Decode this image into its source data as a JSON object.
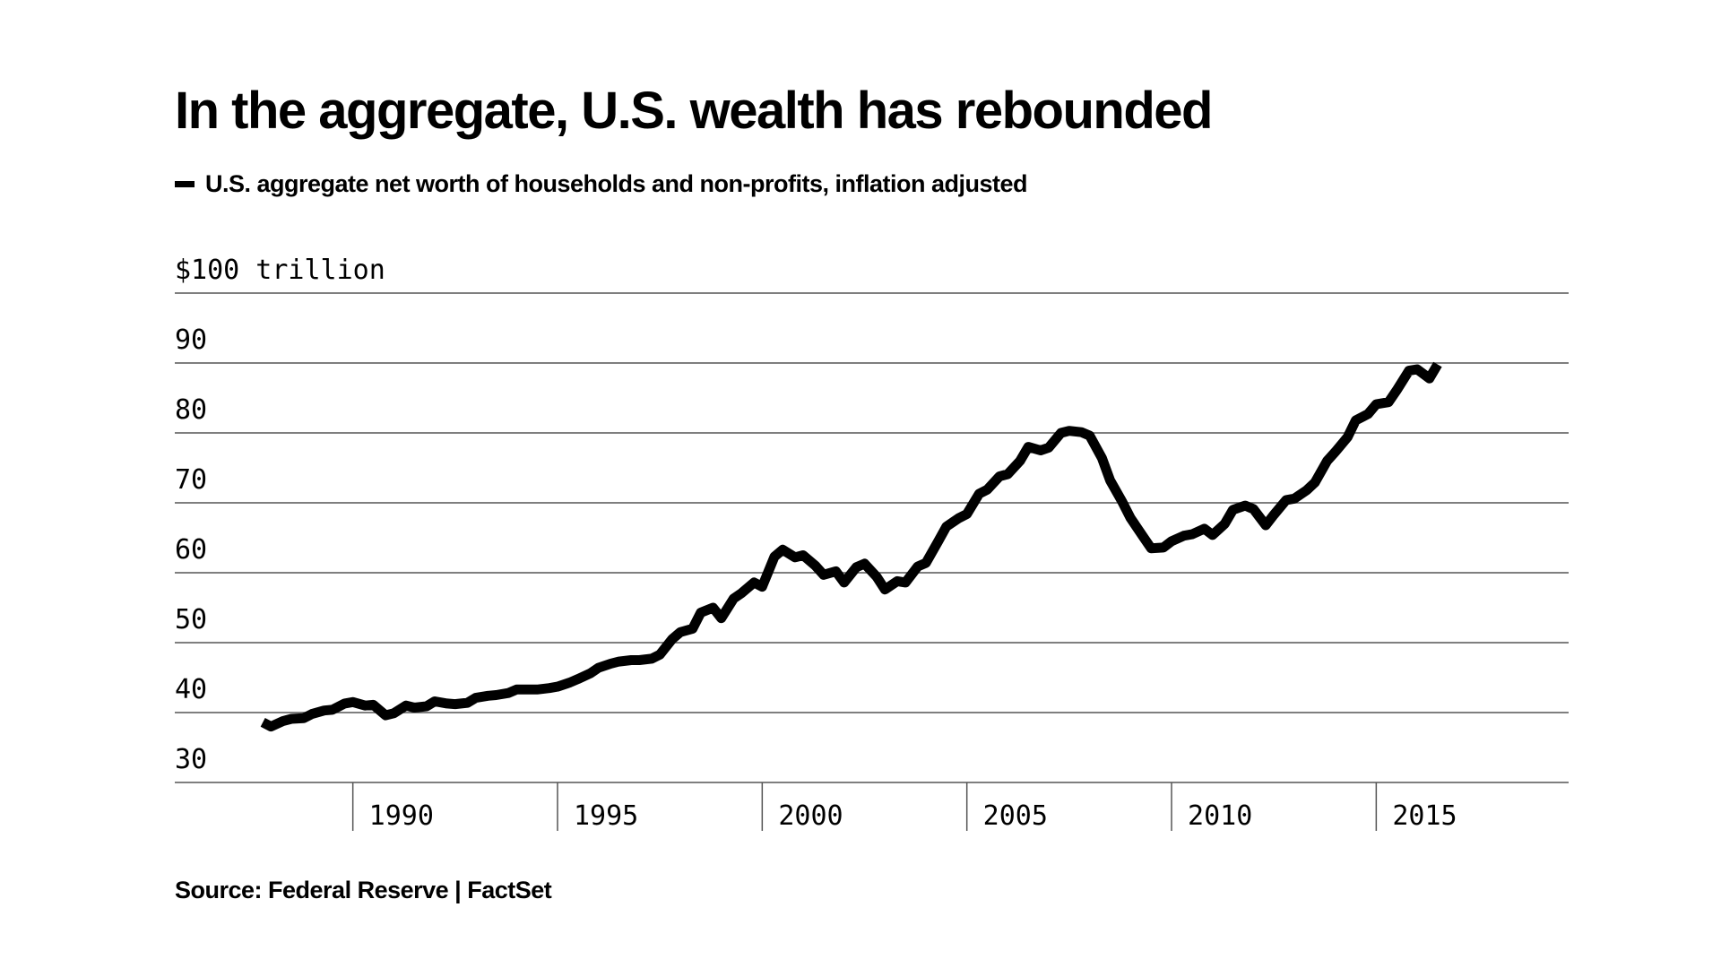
{
  "title": "In the aggregate, U.S. wealth has rebounded",
  "source": "Source: Federal Reserve | FactSet",
  "chart_data": {
    "type": "line",
    "title": "In the aggregate, U.S. wealth has rebounded",
    "unit_label": "$100 trillion",
    "y_ticks": [
      {
        "value": 100,
        "label": "$100 trillion"
      },
      {
        "value": 90,
        "label": "90"
      },
      {
        "value": 80,
        "label": "80"
      },
      {
        "value": 70,
        "label": "70"
      },
      {
        "value": 60,
        "label": "60"
      },
      {
        "value": 50,
        "label": "50"
      },
      {
        "value": 40,
        "label": "40"
      },
      {
        "value": 30,
        "label": "30"
      }
    ],
    "x_ticks": [
      {
        "value": 1990,
        "label": "1990"
      },
      {
        "value": 1995,
        "label": "1995"
      },
      {
        "value": 2000,
        "label": "2000"
      },
      {
        "value": 2005,
        "label": "2005"
      },
      {
        "value": 2010,
        "label": "2010"
      },
      {
        "value": 2015,
        "label": "2015"
      }
    ],
    "xlim": [
      1985.65,
      2019.7
    ],
    "ylim": [
      30,
      100
    ],
    "grid": true,
    "legend": "top-left",
    "series": [
      {
        "name": "U.S. aggregate net worth of households and non-profits, inflation adjusted",
        "color": "#000000",
        "x": [
          1987.8,
          1988.0,
          1988.3,
          1988.5,
          1988.8,
          1989.0,
          1989.3,
          1989.5,
          1989.8,
          1990.0,
          1990.3,
          1990.5,
          1990.8,
          1991.0,
          1991.3,
          1991.5,
          1991.8,
          1992.0,
          1992.3,
          1992.5,
          1992.8,
          1993.0,
          1993.3,
          1993.5,
          1993.8,
          1994.0,
          1994.3,
          1994.5,
          1994.8,
          1995.0,
          1995.3,
          1995.5,
          1995.8,
          1996.0,
          1996.3,
          1996.5,
          1996.8,
          1997.0,
          1997.3,
          1997.5,
          1997.8,
          1998.0,
          1998.3,
          1998.5,
          1998.8,
          1999.0,
          1999.3,
          1999.5,
          1999.8,
          2000.0,
          2000.3,
          2000.5,
          2000.8,
          2001.0,
          2001.3,
          2001.5,
          2001.8,
          2002.0,
          2002.3,
          2002.5,
          2002.8,
          2003.0,
          2003.3,
          2003.5,
          2003.8,
          2004.0,
          2004.3,
          2004.5,
          2004.8,
          2005.0,
          2005.3,
          2005.5,
          2005.8,
          2006.0,
          2006.3,
          2006.5,
          2006.8,
          2007.0,
          2007.3,
          2007.5,
          2007.8,
          2008.0,
          2008.3,
          2008.5,
          2008.8,
          2009.0,
          2009.3,
          2009.5,
          2009.8,
          2010.0,
          2010.3,
          2010.5,
          2010.8,
          2011.0,
          2011.3,
          2011.5,
          2011.8,
          2012.0,
          2012.3,
          2012.5,
          2012.8,
          2013.0,
          2013.3,
          2013.5,
          2013.8,
          2014.0,
          2014.3,
          2014.5,
          2014.8,
          2015.0,
          2015.3,
          2015.5,
          2015.8,
          2016.0,
          2016.3,
          2016.5
        ],
        "values": [
          38.6,
          38.0,
          38.8,
          39.1,
          39.2,
          39.8,
          40.3,
          40.4,
          41.3,
          41.5,
          41.0,
          41.1,
          39.6,
          39.9,
          41.0,
          40.7,
          40.9,
          41.6,
          41.3,
          41.2,
          41.4,
          42.1,
          42.4,
          42.5,
          42.8,
          43.3,
          43.3,
          43.3,
          43.5,
          43.7,
          44.3,
          44.8,
          45.6,
          46.4,
          47.0,
          47.3,
          47.5,
          47.5,
          47.7,
          48.3,
          50.5,
          51.5,
          52.0,
          54.3,
          55.0,
          53.5,
          56.3,
          57.1,
          58.6,
          58.0,
          62.3,
          63.3,
          62.2,
          62.5,
          61.0,
          59.7,
          60.2,
          58.6,
          60.8,
          61.3,
          59.4,
          57.6,
          58.8,
          58.6,
          60.9,
          61.4,
          64.5,
          66.6,
          67.8,
          68.4,
          71.3,
          71.9,
          73.8,
          74.1,
          76.0,
          78.0,
          77.5,
          77.9,
          80.0,
          80.3,
          80.1,
          79.6,
          76.4,
          73.2,
          70.1,
          67.8,
          65.2,
          63.5,
          63.6,
          64.5,
          65.3,
          65.5,
          66.3,
          65.4,
          67.0,
          69.0,
          69.6,
          69.1,
          66.8,
          68.3,
          70.4,
          70.6,
          71.8,
          72.9,
          76.0,
          77.3,
          79.4,
          81.8,
          82.7,
          84.1,
          84.4,
          86.1,
          88.9,
          89.1,
          87.8,
          89.8
        ]
      }
    ]
  }
}
